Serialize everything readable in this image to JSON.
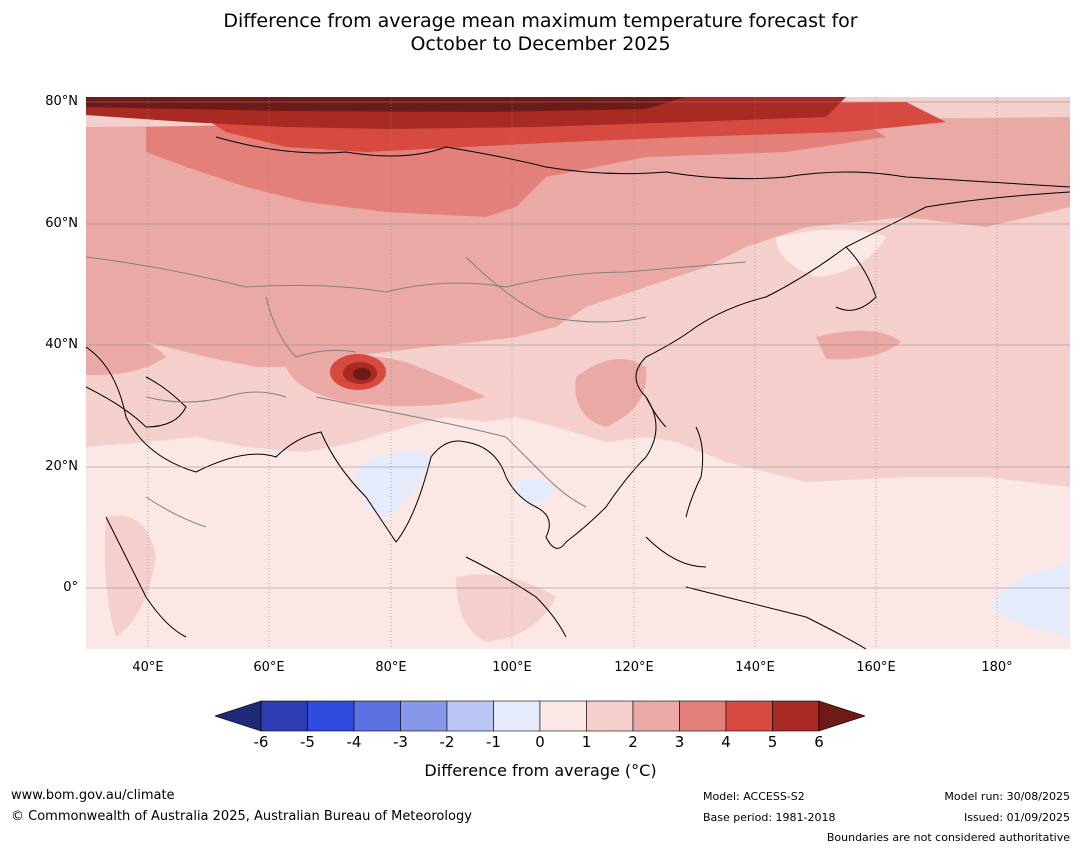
{
  "title_line1": "Difference from average mean maximum temperature forecast for",
  "title_line2": "October to December 2025",
  "lat_labels": [
    "80°N",
    "60°N",
    "40°N",
    "20°N",
    "0°"
  ],
  "lon_labels": [
    "40°E",
    "60°E",
    "80°E",
    "100°E",
    "120°E",
    "140°E",
    "160°E",
    "180°"
  ],
  "colorbar": {
    "ticks": [
      "-6",
      "-5",
      "-4",
      "-3",
      "-2",
      "-1",
      "0",
      "1",
      "2",
      "3",
      "4",
      "5",
      "6"
    ],
    "colors": [
      "#1e2a78",
      "#2b3db0",
      "#2f4bde",
      "#5c72e2",
      "#8797ea",
      "#bcc6f4",
      "#e6ebfb",
      "#fbe8e6",
      "#f4cfcb",
      "#eaa9a5",
      "#e4807a",
      "#d64a40",
      "#a82a22",
      "#6e1a16"
    ],
    "label": "Difference from average (°C)"
  },
  "footer": {
    "url": "www.bom.gov.au/climate",
    "copyright": "© Commonwealth of Australia 2025, Australian Bureau of Meteorology",
    "model": "Model: ACCESS-S2",
    "base_period": "Base period: 1981-2018",
    "model_run": "Model run: 30/08/2025",
    "issued": "Issued: 01/09/2025",
    "disclaimer": "Boundaries are not considered authoritative"
  }
}
